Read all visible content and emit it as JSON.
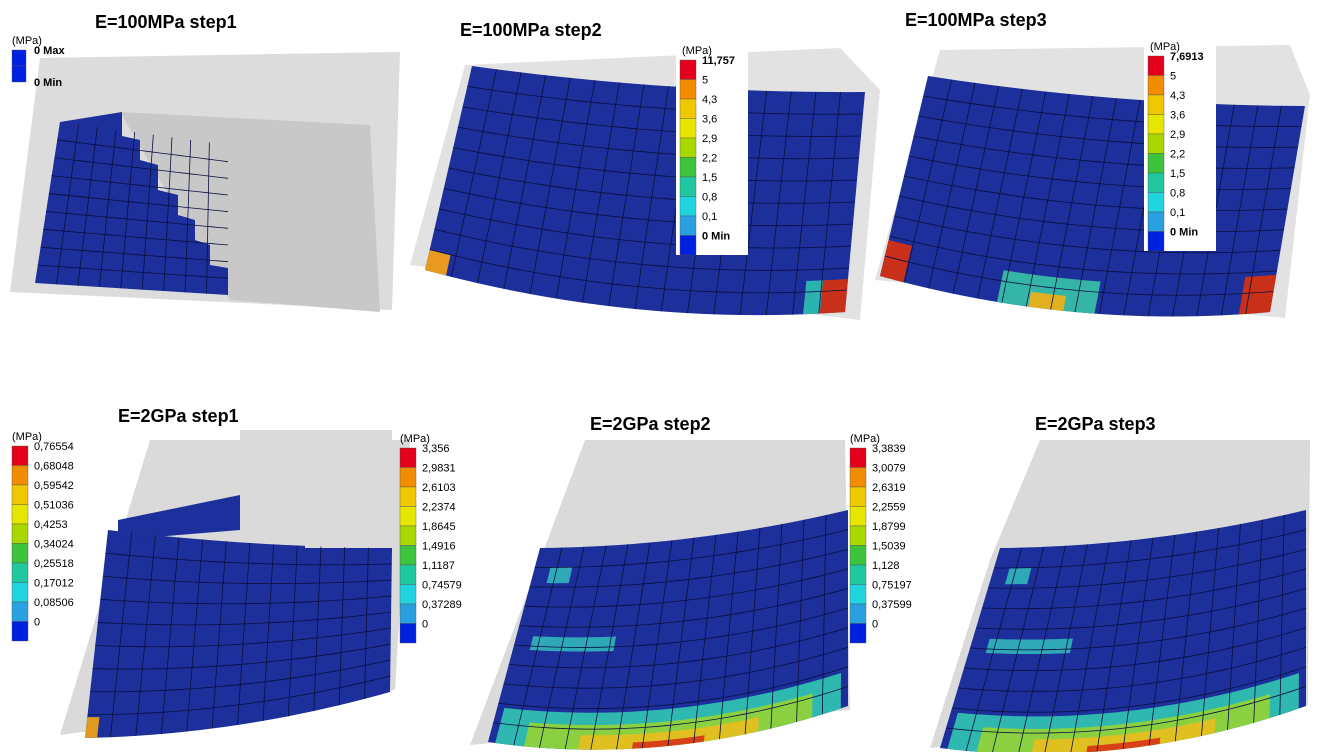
{
  "panels": [
    {
      "title": "E=100MPa  step1",
      "legend": {
        "unit": "(MPa)",
        "labels": [
          "0 Max",
          "0 Min"
        ]
      }
    },
    {
      "title": "E=100MPa  step2",
      "legend": {
        "unit": "(MPa)",
        "labels": [
          "11,757",
          "5",
          "4,3",
          "3,6",
          "2,9",
          "2,2",
          "1,5",
          "0,8",
          "0,1",
          "0 Min"
        ]
      }
    },
    {
      "title": "E=100MPa  step3",
      "legend": {
        "unit": "(MPa)",
        "labels": [
          "7,6913",
          "5",
          "4,3",
          "3,6",
          "2,9",
          "2,2",
          "1,5",
          "0,8",
          "0,1",
          "0 Min"
        ]
      }
    },
    {
      "title": "E=2GPa step1",
      "legend": {
        "unit": "(MPa)",
        "labels": [
          "0,76554",
          "0,68048",
          "0,59542",
          "0,51036",
          "0,4253",
          "0,34024",
          "0,25518",
          "0,17012",
          "0,08506",
          "0"
        ]
      }
    },
    {
      "title": "E=2GPa step2",
      "legend": {
        "unit": "(MPa)",
        "labels": [
          "3,356",
          "2,9831",
          "2,6103",
          "2,2374",
          "1,8645",
          "1,4916",
          "1,1187",
          "0,74579",
          "0,37289",
          "0"
        ]
      }
    },
    {
      "title": "E=2GPa  step3",
      "legend": {
        "unit": "(MPa)",
        "labels": [
          "3,3839",
          "3,0079",
          "2,6319",
          "2,2559",
          "1,8799",
          "1,5039",
          "1,128",
          "0,75197",
          "0,37599",
          "0"
        ]
      }
    }
  ]
}
